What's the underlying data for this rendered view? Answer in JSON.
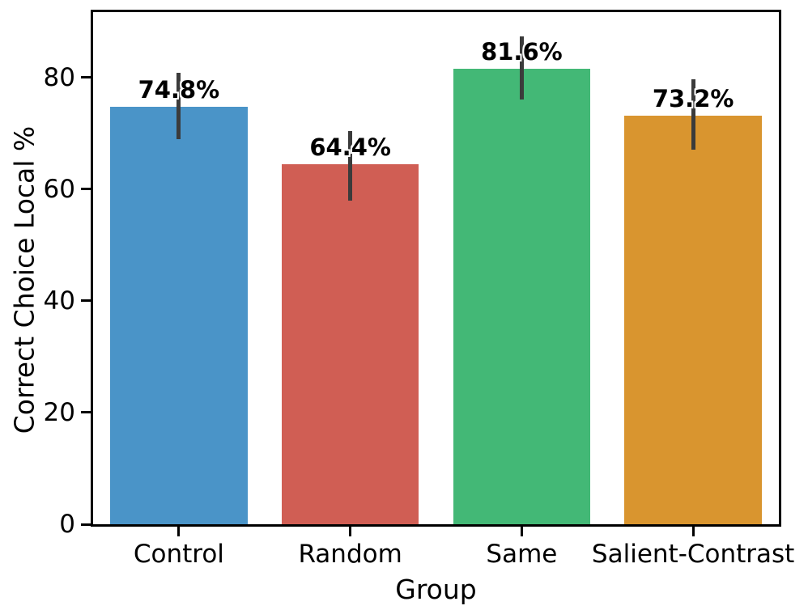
{
  "chart_data": {
    "type": "bar",
    "title": "",
    "xlabel": "Group",
    "ylabel": "Correct Choice Local %",
    "categories": [
      "Control",
      "Random",
      "Same",
      "Salient-Contrast"
    ],
    "values": [
      74.8,
      64.4,
      81.6,
      73.2
    ],
    "value_labels": [
      "74.8%",
      "64.4%",
      "81.6%",
      "73.2%"
    ],
    "error_low": [
      69.0,
      58.0,
      76.1,
      67.1
    ],
    "error_high": [
      80.8,
      70.4,
      87.4,
      79.7
    ],
    "bar_colors": [
      "#4a94c8",
      "#d05e54",
      "#43b876",
      "#d9952f"
    ],
    "errorbar_color": "#3b3b3b",
    "yticks": [
      0,
      20,
      40,
      60,
      80
    ],
    "ylim": [
      0,
      91.7
    ],
    "bar_width_fraction": 0.8,
    "grid": false,
    "legend": null,
    "background_color": "#ffffff",
    "text_color": "#000000"
  }
}
